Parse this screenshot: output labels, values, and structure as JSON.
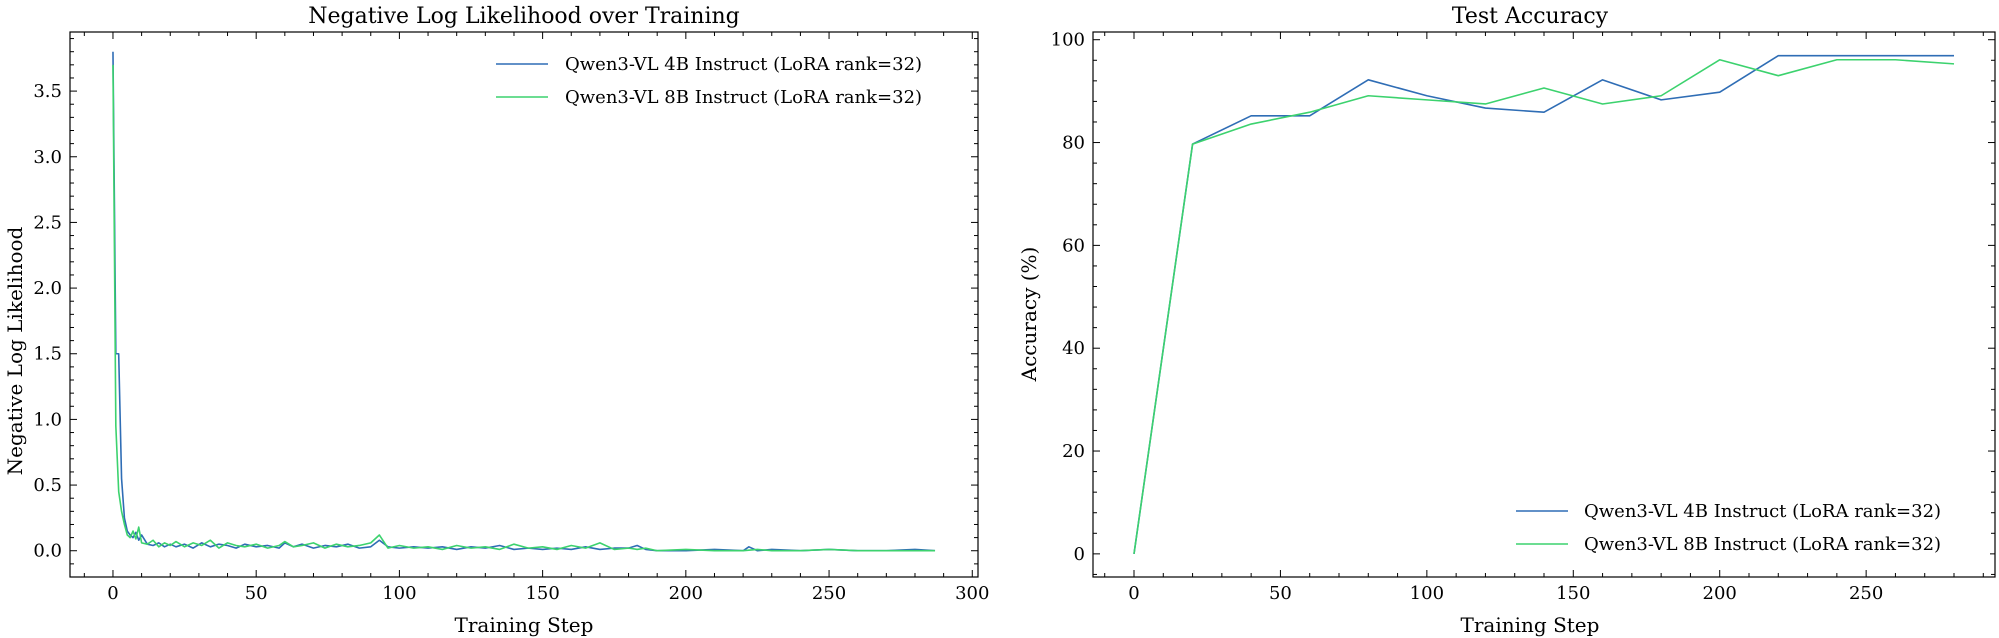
{
  "chart_data": [
    {
      "type": "line",
      "title": "Negative Log Likelihood over Training",
      "xlabel": "Training Step",
      "ylabel": "Negative Log Likelihood",
      "xlim": [
        -15,
        302
      ],
      "ylim": [
        -0.2,
        3.95
      ],
      "xticks": [
        0,
        50,
        100,
        150,
        200,
        250,
        300
      ],
      "xtick_labels": [
        "0",
        "50",
        "100",
        "150",
        "200",
        "250",
        "300"
      ],
      "yticks": [
        0.0,
        0.5,
        1.0,
        1.5,
        2.0,
        2.5,
        3.0,
        3.5
      ],
      "ytick_labels": [
        "0.0",
        "0.5",
        "1.0",
        "1.5",
        "2.0",
        "2.5",
        "3.0",
        "3.5"
      ],
      "grid": false,
      "legend_position": "top-right",
      "series": [
        {
          "name": "Qwen3-VL 4B Instruct (LoRA rank=32)",
          "color": "#2f6db5",
          "x": [
            0,
            1,
            2,
            3,
            4,
            5,
            6,
            7,
            8,
            9,
            10,
            12,
            14,
            16,
            18,
            20,
            22,
            25,
            28,
            31,
            34,
            37,
            40,
            43,
            46,
            50,
            54,
            58,
            60,
            63,
            66,
            70,
            74,
            78,
            82,
            86,
            90,
            93,
            96,
            100,
            105,
            110,
            115,
            120,
            125,
            130,
            135,
            140,
            145,
            150,
            155,
            160,
            165,
            170,
            175,
            180,
            183,
            186,
            190,
            200,
            210,
            220,
            222,
            225,
            230,
            240,
            250,
            260,
            270,
            280,
            287
          ],
          "y": [
            3.8,
            1.5,
            1.5,
            0.55,
            0.25,
            0.15,
            0.12,
            0.1,
            0.14,
            0.08,
            0.12,
            0.05,
            0.04,
            0.06,
            0.03,
            0.05,
            0.03,
            0.05,
            0.02,
            0.06,
            0.03,
            0.05,
            0.04,
            0.02,
            0.05,
            0.03,
            0.04,
            0.02,
            0.06,
            0.03,
            0.05,
            0.02,
            0.04,
            0.03,
            0.05,
            0.02,
            0.03,
            0.08,
            0.03,
            0.02,
            0.03,
            0.02,
            0.03,
            0.01,
            0.03,
            0.02,
            0.04,
            0.01,
            0.02,
            0.01,
            0.02,
            0.01,
            0.03,
            0.01,
            0.02,
            0.02,
            0.04,
            0.01,
            0.0,
            0.0,
            0.01,
            0.0,
            0.03,
            0.0,
            0.01,
            0.0,
            0.01,
            0.0,
            0.0,
            0.01,
            0.0
          ]
        },
        {
          "name": "Qwen3-VL 8B Instruct (LoRA rank=32)",
          "color": "#3cd26e",
          "x": [
            0,
            1,
            2,
            3,
            4,
            5,
            6,
            7,
            8,
            9,
            10,
            12,
            14,
            16,
            18,
            20,
            22,
            25,
            28,
            31,
            34,
            37,
            40,
            43,
            46,
            50,
            54,
            58,
            60,
            63,
            66,
            70,
            74,
            78,
            82,
            86,
            90,
            93,
            96,
            100,
            105,
            110,
            115,
            120,
            125,
            130,
            135,
            140,
            145,
            150,
            155,
            160,
            165,
            170,
            175,
            180,
            183,
            186,
            190,
            200,
            210,
            220,
            225,
            230,
            240,
            250,
            260,
            270,
            280,
            287
          ],
          "y": [
            3.7,
            0.95,
            0.45,
            0.3,
            0.2,
            0.12,
            0.1,
            0.15,
            0.09,
            0.18,
            0.06,
            0.05,
            0.08,
            0.03,
            0.06,
            0.04,
            0.07,
            0.03,
            0.06,
            0.04,
            0.08,
            0.02,
            0.06,
            0.04,
            0.03,
            0.05,
            0.02,
            0.04,
            0.07,
            0.03,
            0.04,
            0.06,
            0.02,
            0.05,
            0.03,
            0.04,
            0.06,
            0.12,
            0.02,
            0.04,
            0.02,
            0.03,
            0.01,
            0.04,
            0.02,
            0.03,
            0.01,
            0.05,
            0.02,
            0.03,
            0.01,
            0.04,
            0.02,
            0.06,
            0.01,
            0.02,
            0.01,
            0.02,
            0.0,
            0.01,
            0.0,
            0.0,
            0.01,
            0.0,
            0.0,
            0.01,
            0.0,
            0.0,
            0.0,
            0.0
          ]
        }
      ]
    },
    {
      "type": "line",
      "title": "Test Accuracy",
      "xlabel": "Training Step",
      "ylabel": "Accuracy (%)",
      "xlim": [
        -14,
        294
      ],
      "ylim": [
        -4.5,
        101.5
      ],
      "xticks": [
        0,
        50,
        100,
        150,
        200,
        250
      ],
      "xtick_labels": [
        "0",
        "50",
        "100",
        "150",
        "200",
        "250"
      ],
      "yticks": [
        0,
        20,
        40,
        60,
        80,
        100
      ],
      "ytick_labels": [
        "0",
        "20",
        "40",
        "60",
        "80",
        "100"
      ],
      "grid": false,
      "legend_position": "bottom-right",
      "series": [
        {
          "name": "Qwen3-VL 4B Instruct (LoRA rank=32)",
          "color": "#2f6db5",
          "x": [
            0,
            20,
            40,
            60,
            80,
            100,
            120,
            140,
            160,
            180,
            200,
            220,
            240,
            260,
            280
          ],
          "y": [
            0,
            79.7,
            85.2,
            85.2,
            92.2,
            89.1,
            86.7,
            85.9,
            92.2,
            88.3,
            89.8,
            96.9,
            96.9,
            96.9,
            96.9
          ]
        },
        {
          "name": "Qwen3-VL 8B Instruct (LoRA rank=32)",
          "color": "#3cd26e",
          "x": [
            0,
            20,
            40,
            60,
            80,
            100,
            120,
            140,
            160,
            180,
            200,
            220,
            240,
            260,
            280
          ],
          "y": [
            0,
            79.7,
            83.6,
            85.9,
            89.1,
            88.3,
            87.5,
            90.6,
            87.5,
            89.1,
            96.1,
            93.0,
            96.1,
            96.1,
            95.3
          ]
        }
      ]
    }
  ]
}
